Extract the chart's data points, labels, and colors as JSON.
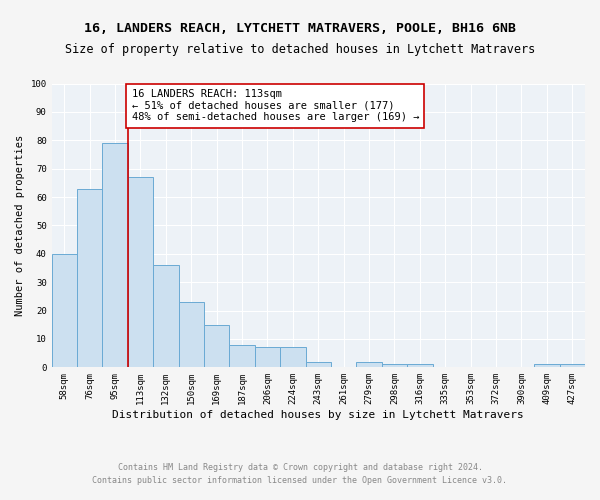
{
  "title1": "16, LANDERS REACH, LYTCHETT MATRAVERS, POOLE, BH16 6NB",
  "title2": "Size of property relative to detached houses in Lytchett Matravers",
  "xlabel": "Distribution of detached houses by size in Lytchett Matravers",
  "ylabel": "Number of detached properties",
  "categories": [
    "58sqm",
    "76sqm",
    "95sqm",
    "113sqm",
    "132sqm",
    "150sqm",
    "169sqm",
    "187sqm",
    "206sqm",
    "224sqm",
    "243sqm",
    "261sqm",
    "279sqm",
    "298sqm",
    "316sqm",
    "335sqm",
    "353sqm",
    "372sqm",
    "390sqm",
    "409sqm",
    "427sqm"
  ],
  "values": [
    40,
    63,
    79,
    67,
    36,
    23,
    15,
    8,
    7,
    7,
    2,
    0,
    2,
    1,
    1,
    0,
    0,
    0,
    0,
    1,
    1
  ],
  "bar_color": "#cce0f0",
  "bar_edge_color": "#6aaad4",
  "property_line_index": 3,
  "property_line_color": "#cc0000",
  "annotation_text": "16 LANDERS REACH: 113sqm\n← 51% of detached houses are smaller (177)\n48% of semi-detached houses are larger (169) →",
  "annotation_box_facecolor": "#ffffff",
  "annotation_box_edgecolor": "#cc0000",
  "ylim": [
    0,
    100
  ],
  "yticks": [
    0,
    10,
    20,
    30,
    40,
    50,
    60,
    70,
    80,
    90,
    100
  ],
  "footnote": "Contains HM Land Registry data © Crown copyright and database right 2024.\nContains public sector information licensed under the Open Government Licence v3.0.",
  "background_color": "#edf2f7",
  "grid_color": "#ffffff",
  "fig_facecolor": "#f5f5f5",
  "title1_fontsize": 9.5,
  "title2_fontsize": 8.5,
  "xlabel_fontsize": 8,
  "ylabel_fontsize": 7.5,
  "tick_fontsize": 6.5,
  "footnote_fontsize": 6,
  "annotation_fontsize": 7.5
}
